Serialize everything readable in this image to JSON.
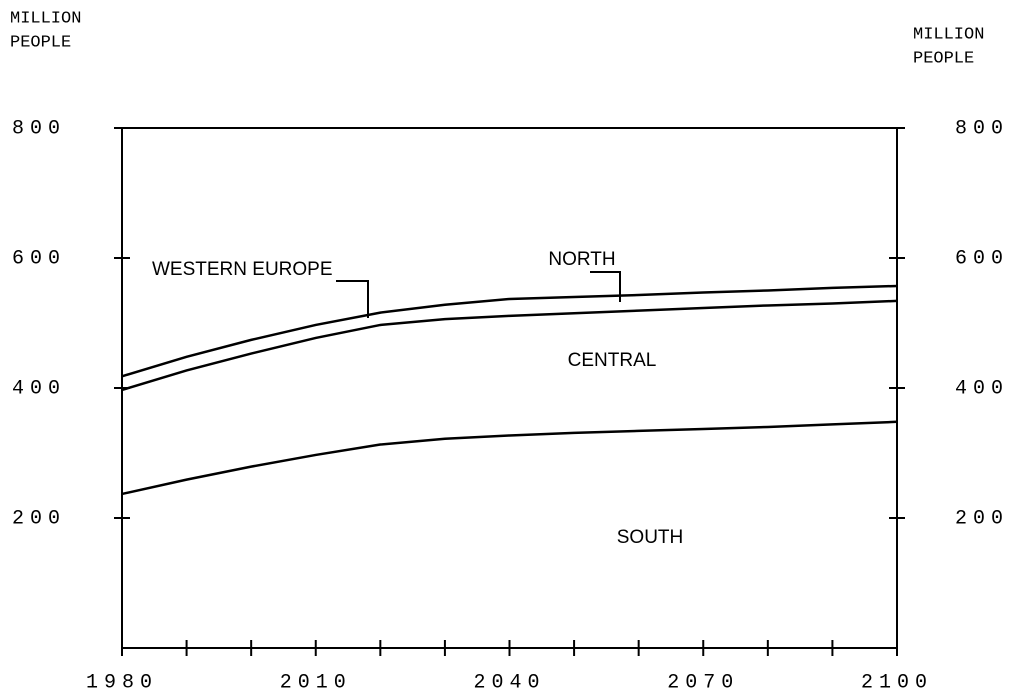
{
  "chart_data": {
    "type": "line",
    "stacked": true,
    "title": "WESTERN EUROPE",
    "y_label_lines": [
      "MILLION",
      "PEOPLE"
    ],
    "y2_label_lines": [
      "MILLION",
      "PEOPLE"
    ],
    "x": [
      1980,
      1990,
      2000,
      2010,
      2020,
      2030,
      2040,
      2050,
      2060,
      2070,
      2080,
      2090,
      2100
    ],
    "series": [
      {
        "name": "SOUTH",
        "color": "#000000",
        "values": [
          237,
          259,
          279,
          297,
          313,
          322,
          327,
          331,
          334,
          337,
          340,
          344,
          348
        ]
      },
      {
        "name": "CENTRAL",
        "color": "#000000",
        "values": [
          160,
          168,
          174,
          180,
          184,
          184,
          184,
          184,
          185,
          186,
          187,
          186,
          186
        ]
      },
      {
        "name": "NORTH",
        "color": "#000000",
        "values": [
          21,
          21,
          21,
          20,
          19,
          22,
          26,
          25,
          24,
          24,
          23,
          24,
          23
        ]
      }
    ],
    "xlim": [
      1980,
      2100
    ],
    "xticks": [
      1980,
      2010,
      2040,
      2070,
      2100
    ],
    "xminor_ticks": [
      1990,
      2000,
      2020,
      2030,
      2050,
      2060,
      2080,
      2090
    ],
    "ylim": [
      0,
      800
    ],
    "yticks": [
      200,
      400,
      600,
      800
    ],
    "grid": false
  }
}
